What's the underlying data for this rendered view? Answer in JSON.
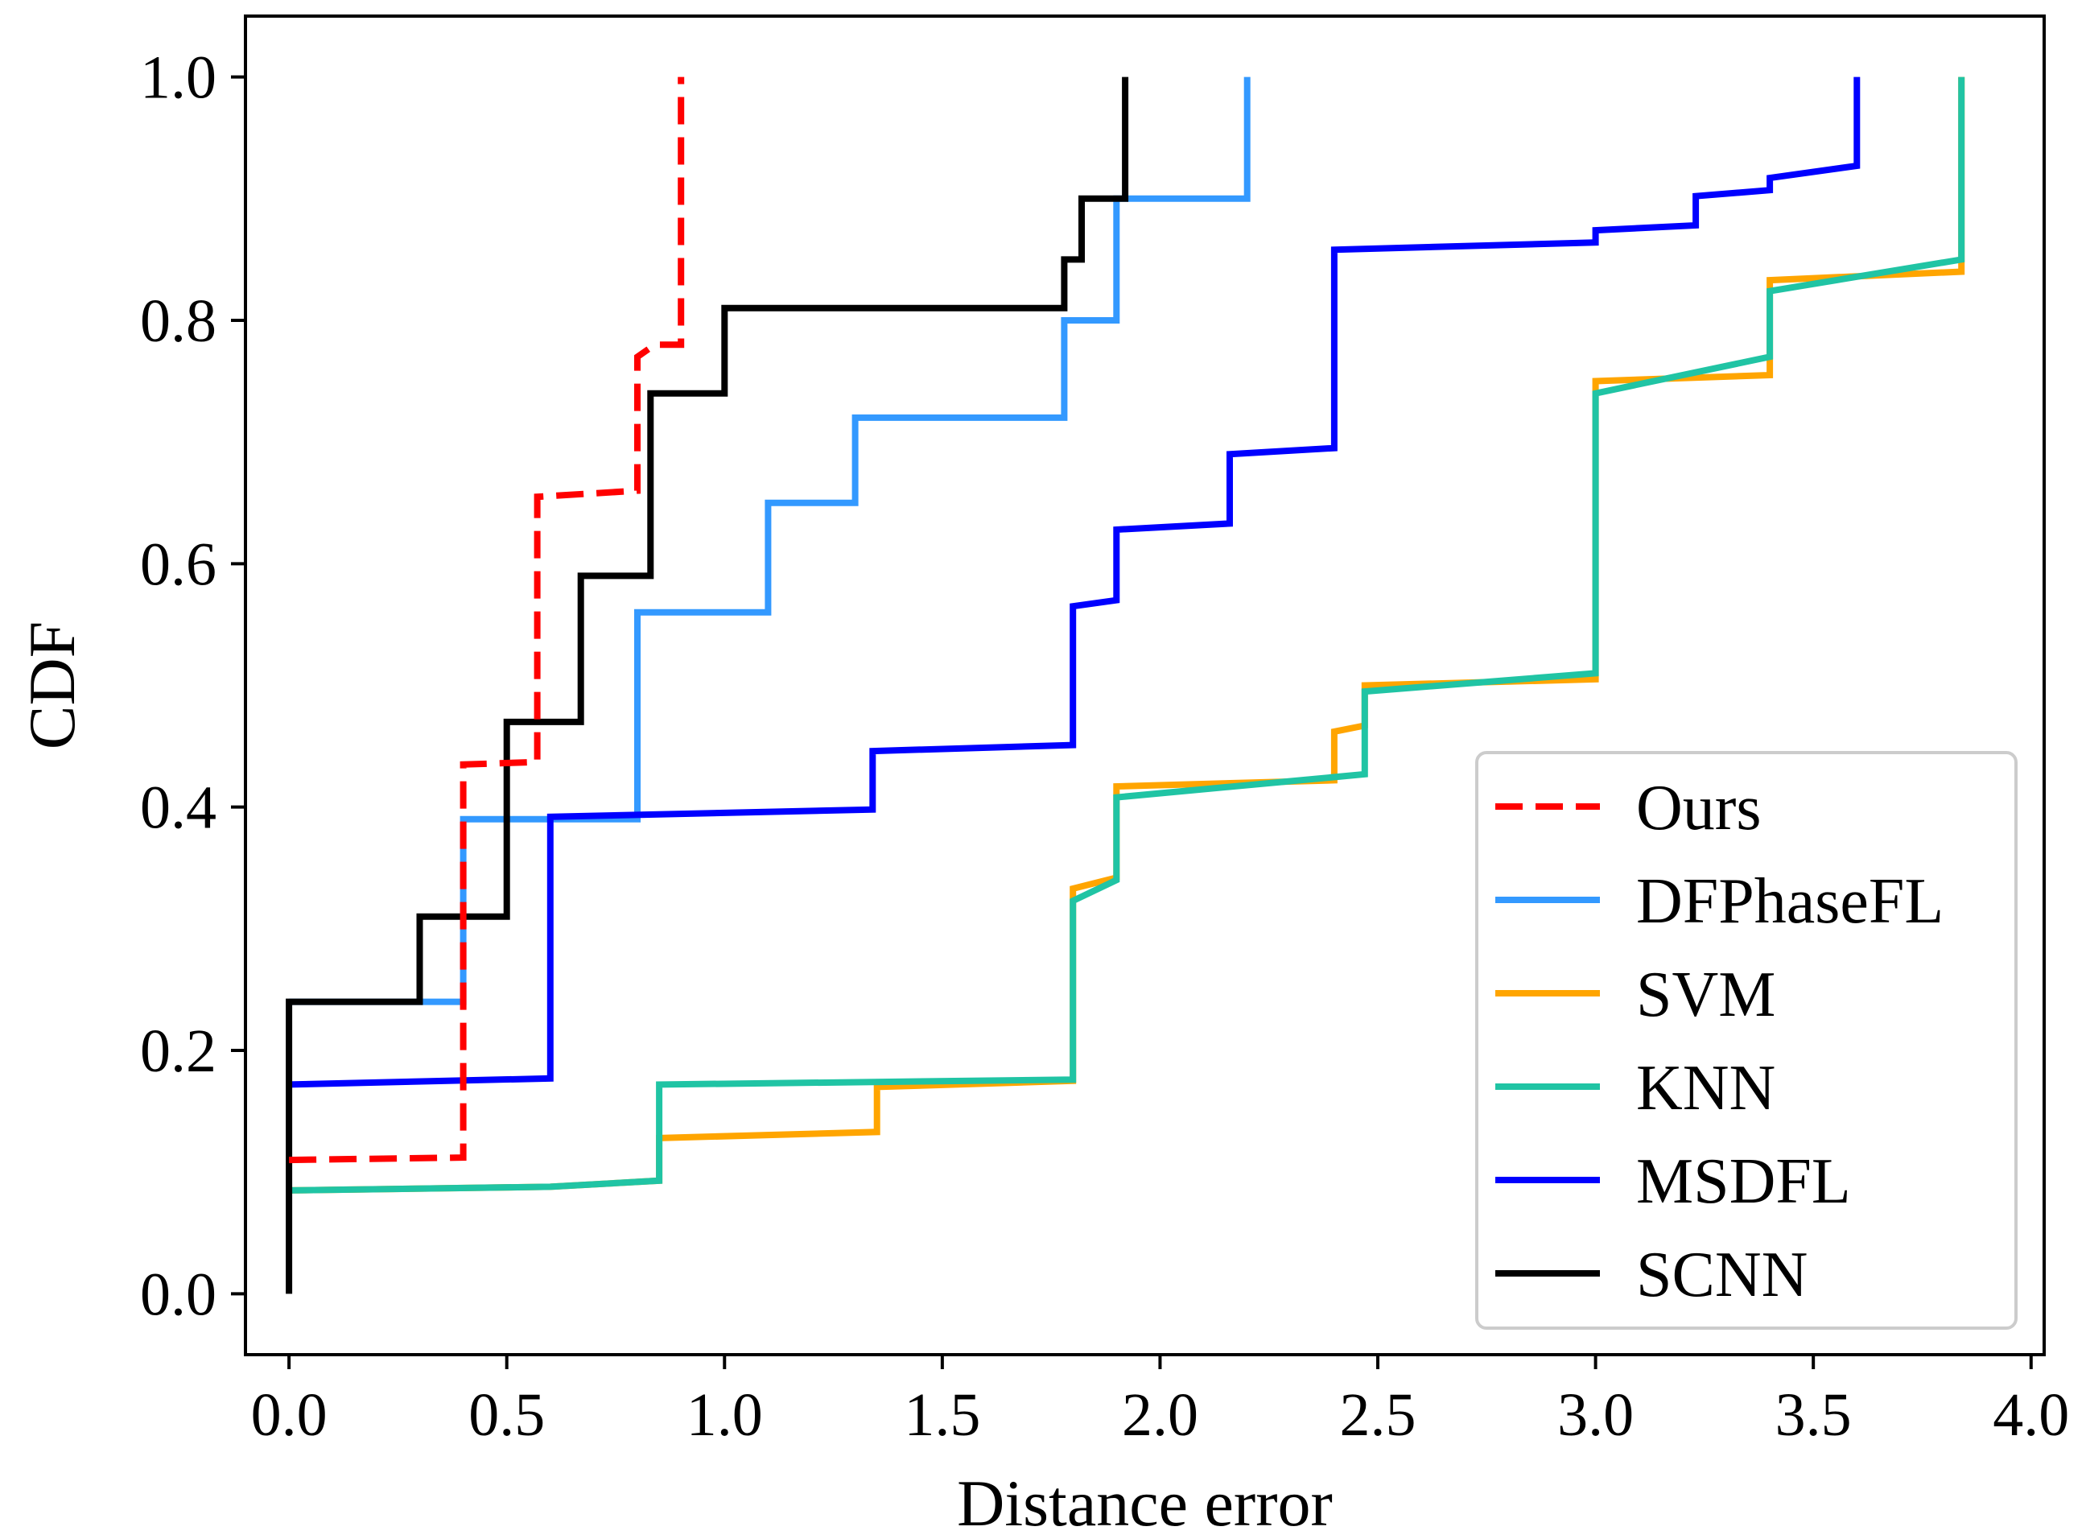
{
  "chart_data": {
    "type": "line",
    "step": true,
    "title": "",
    "xlabel": "Distance error",
    "ylabel": "CDF",
    "xlim": [
      -0.1,
      4.03
    ],
    "ylim": [
      -0.05,
      1.05
    ],
    "xticks": [
      0.0,
      0.5,
      1.0,
      1.5,
      2.0,
      2.5,
      3.0,
      3.5,
      4.0
    ],
    "xtick_labels": [
      "0.0",
      "0.5",
      "1.0",
      "1.5",
      "2.0",
      "2.5",
      "3.0",
      "3.5",
      "4.0"
    ],
    "yticks": [
      0.0,
      0.2,
      0.4,
      0.6,
      0.8,
      1.0
    ],
    "ytick_labels": [
      "0.0",
      "0.2",
      "0.4",
      "0.6",
      "0.8",
      "1.0"
    ],
    "grid": false,
    "legend_position": "bottom-right",
    "series": [
      {
        "name": "Ours",
        "color": "#ff0000",
        "dashed": true,
        "points": [
          [
            0,
            0.11
          ],
          [
            0.4,
            0.112
          ],
          [
            0.4,
            0.435
          ],
          [
            0.57,
            0.437
          ],
          [
            0.57,
            0.655
          ],
          [
            0.8,
            0.66
          ],
          [
            0.8,
            0.77
          ],
          [
            0.84,
            0.78
          ],
          [
            0.84,
            0.78
          ],
          [
            0.9,
            0.78
          ],
          [
            0.9,
            1.0
          ]
        ]
      },
      {
        "name": "DFPhaseFL",
        "color": "#3399ff",
        "dashed": false,
        "points": [
          [
            0,
            0.24
          ],
          [
            0.4,
            0.24
          ],
          [
            0.4,
            0.39
          ],
          [
            0.8,
            0.39
          ],
          [
            0.8,
            0.56
          ],
          [
            1.1,
            0.56
          ],
          [
            1.1,
            0.65
          ],
          [
            1.3,
            0.65
          ],
          [
            1.3,
            0.72
          ],
          [
            1.78,
            0.72
          ],
          [
            1.78,
            0.8
          ],
          [
            1.9,
            0.8
          ],
          [
            1.9,
            0.9
          ],
          [
            2.2,
            0.9
          ],
          [
            2.2,
            1.0
          ]
        ]
      },
      {
        "name": "SVM",
        "color": "#ffa500",
        "dashed": false,
        "points": [
          [
            0,
            0.085
          ],
          [
            0.6,
            0.088
          ],
          [
            0.85,
            0.093
          ],
          [
            0.85,
            0.128
          ],
          [
            1.35,
            0.133
          ],
          [
            1.35,
            0.17
          ],
          [
            1.8,
            0.175
          ],
          [
            1.8,
            0.333
          ],
          [
            1.9,
            0.342
          ],
          [
            1.9,
            0.417
          ],
          [
            2.4,
            0.422
          ],
          [
            2.4,
            0.462
          ],
          [
            2.47,
            0.467
          ],
          [
            2.47,
            0.5
          ],
          [
            3.0,
            0.505
          ],
          [
            3.0,
            0.75
          ],
          [
            3.4,
            0.755
          ],
          [
            3.4,
            0.833
          ],
          [
            3.84,
            0.84
          ],
          [
            3.84,
            1.0
          ]
        ]
      },
      {
        "name": "KNN",
        "color": "#20c4a4",
        "dashed": false,
        "points": [
          [
            0,
            0.085
          ],
          [
            0.6,
            0.088
          ],
          [
            0.85,
            0.093
          ],
          [
            0.85,
            0.172
          ],
          [
            1.8,
            0.176
          ],
          [
            1.8,
            0.323
          ],
          [
            1.9,
            0.34
          ],
          [
            1.9,
            0.408
          ],
          [
            2.47,
            0.427
          ],
          [
            2.47,
            0.495
          ],
          [
            3.0,
            0.51
          ],
          [
            3.0,
            0.74
          ],
          [
            3.4,
            0.77
          ],
          [
            3.4,
            0.824
          ],
          [
            3.84,
            0.85
          ],
          [
            3.84,
            1.0
          ]
        ]
      },
      {
        "name": "MSDFL",
        "color": "#0000ff",
        "dashed": false,
        "points": [
          [
            0,
            0.172
          ],
          [
            0.6,
            0.177
          ],
          [
            0.6,
            0.392
          ],
          [
            1.34,
            0.398
          ],
          [
            1.34,
            0.446
          ],
          [
            1.8,
            0.451
          ],
          [
            1.8,
            0.565
          ],
          [
            1.9,
            0.57
          ],
          [
            1.9,
            0.628
          ],
          [
            2.16,
            0.633
          ],
          [
            2.16,
            0.69
          ],
          [
            2.4,
            0.695
          ],
          [
            2.4,
            0.858
          ],
          [
            3.0,
            0.864
          ],
          [
            3.0,
            0.874
          ],
          [
            3.23,
            0.878
          ],
          [
            3.23,
            0.902
          ],
          [
            3.4,
            0.907
          ],
          [
            3.4,
            0.917
          ],
          [
            3.6,
            0.927
          ],
          [
            3.6,
            1.0
          ]
        ]
      },
      {
        "name": "SCNN",
        "color": "#000000",
        "dashed": false,
        "points": [
          [
            0,
            0.0
          ],
          [
            0,
            0.24
          ],
          [
            0.3,
            0.24
          ],
          [
            0.3,
            0.31
          ],
          [
            0.5,
            0.31
          ],
          [
            0.5,
            0.47
          ],
          [
            0.67,
            0.47
          ],
          [
            0.67,
            0.59
          ],
          [
            0.83,
            0.59
          ],
          [
            0.83,
            0.74
          ],
          [
            1.0,
            0.74
          ],
          [
            1.0,
            0.81
          ],
          [
            1.78,
            0.81
          ],
          [
            1.78,
            0.85
          ],
          [
            1.82,
            0.85
          ],
          [
            1.82,
            0.9
          ],
          [
            1.92,
            0.9
          ],
          [
            1.92,
            1.0
          ]
        ]
      }
    ]
  }
}
